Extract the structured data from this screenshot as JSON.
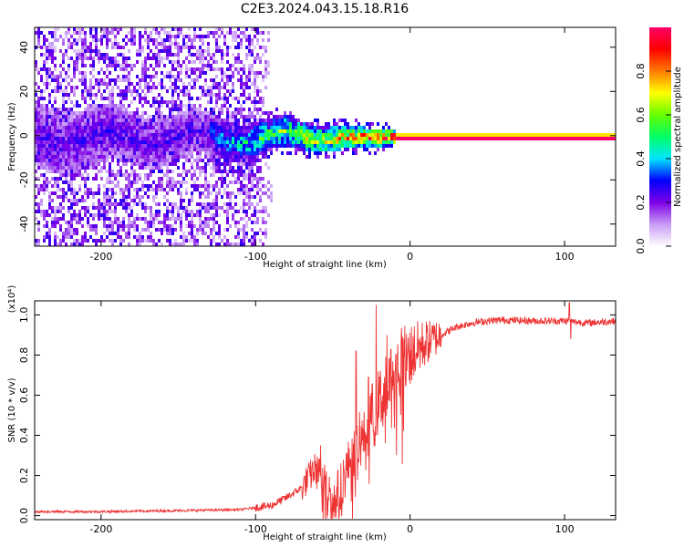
{
  "title": "C2E3.2024.043.15.18.R16",
  "chart_data": [
    {
      "type": "heatmap",
      "xlabel": "Height of straight line (km)",
      "ylabel": "Frequency (Hz)",
      "xlim": [
        -243,
        133
      ],
      "ylim": [
        -50,
        49
      ],
      "x_ticks": [
        -200,
        -100,
        0,
        100
      ],
      "y_ticks": [
        -40,
        -20,
        0,
        20,
        40
      ],
      "colorbar": {
        "label": "Normalized spectral amplitude",
        "range": [
          0,
          1
        ],
        "ticks": [
          "0.0",
          "0.2",
          "0.4",
          "0.6",
          "0.8"
        ],
        "colormap": [
          "#ffffff",
          "#c79bf5",
          "#7d00e6",
          "#0000ff",
          "#00e5ff",
          "#00ff66",
          "#66ff00",
          "#ffff00",
          "#ff7a00",
          "#ff0000",
          "#ff0066"
        ]
      },
      "features": {
        "noise_region_x": [
          -243,
          -100
        ],
        "signal_line_frequency_hz": 0,
        "signal_onset_x": -130,
        "saturated_from_x": -10
      }
    },
    {
      "type": "line",
      "xlabel": "Height of straight line (km)",
      "ylabel": "SNR (10 * v/v)",
      "y_multiplier": "(x10⁴)",
      "xlim": [
        -243,
        133
      ],
      "ylim": [
        -0.02,
        1.07
      ],
      "x_ticks": [
        -200,
        -100,
        0,
        100
      ],
      "y_ticks": [
        "0.0",
        "0.2",
        "0.4",
        "0.6",
        "0.8",
        "1.0"
      ],
      "y_tick_values": [
        0,
        0.2,
        0.4,
        0.6,
        0.8,
        1.0
      ],
      "color": "#ee3333",
      "series": [
        {
          "x": [
            -243,
            -200,
            -150,
            -110,
            -90,
            -80,
            -70,
            -62,
            -55,
            -50,
            -45,
            -40,
            -35,
            -30,
            -25,
            -20,
            -15,
            -10,
            0,
            10,
            20,
            30,
            40,
            50,
            60,
            80,
            100,
            115,
            133
          ],
          "values": [
            0.02,
            0.02,
            0.025,
            0.03,
            0.05,
            0.09,
            0.14,
            0.23,
            0.18,
            0.06,
            0.15,
            0.25,
            0.33,
            0.42,
            0.5,
            0.57,
            0.64,
            0.72,
            0.8,
            0.86,
            0.9,
            0.94,
            0.96,
            0.97,
            0.975,
            0.97,
            0.97,
            0.96,
            0.97
          ],
          "spikes": [
            {
              "x": -58,
              "value": 0.35
            },
            {
              "x": -35,
              "value": 0.82
            },
            {
              "x": -27,
              "value": 0.69
            },
            {
              "x": -22,
              "value": 1.05
            },
            {
              "x": -15,
              "value": 0.9
            },
            {
              "x": 103,
              "value": 1.06
            },
            {
              "x": 104,
              "value": 0.88
            }
          ]
        }
      ]
    }
  ]
}
